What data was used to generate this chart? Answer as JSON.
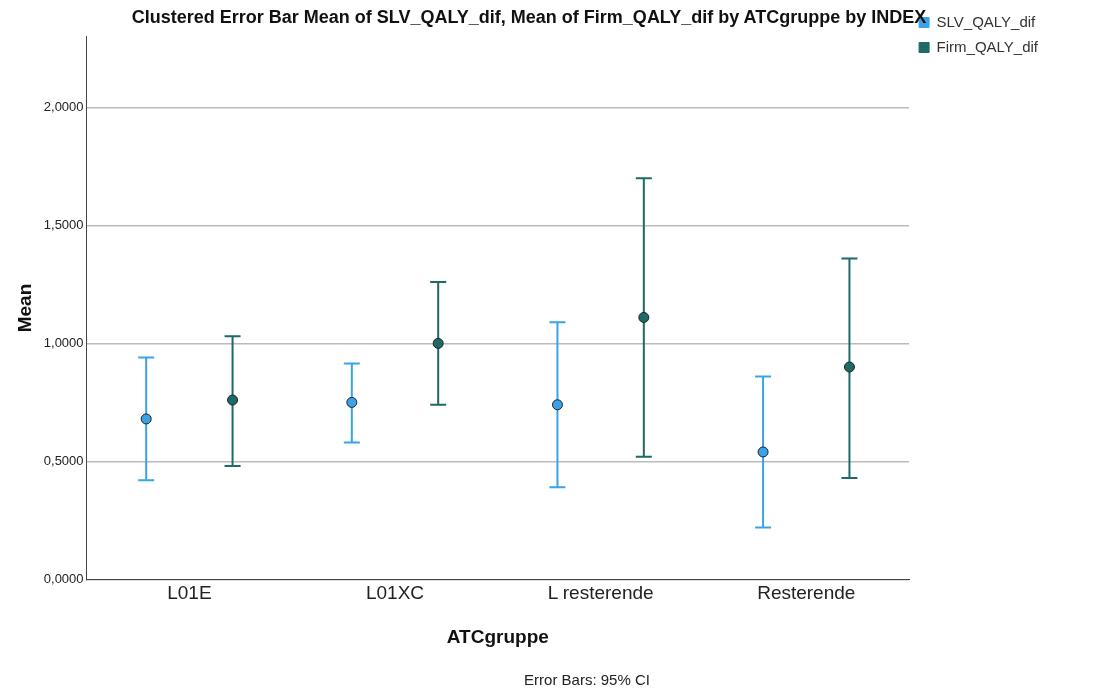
{
  "chart_data": {
    "type": "scatter",
    "title": "Clustered Error Bar Mean of SLV_QALY_dif, Mean of Firm_QALY_dif by ATCgruppe by INDEX",
    "xlabel": "ATCgruppe",
    "ylabel": "Mean",
    "categories": [
      "L01E",
      "L01XC",
      "L resterende",
      "Resterende"
    ],
    "series": [
      {
        "name": "SLV_QALY_dif",
        "color": "#3aa3e8",
        "values": [
          0.68,
          0.75,
          0.74,
          0.54
        ],
        "errors": [
          [
            0.42,
            0.94
          ],
          [
            0.58,
            0.915
          ],
          [
            0.39,
            1.09
          ],
          [
            0.22,
            0.86
          ]
        ]
      },
      {
        "name": "Firm_QALY_dif",
        "color": "#1d6a66",
        "values": [
          0.76,
          1.0,
          1.11,
          0.9
        ],
        "errors": [
          [
            0.48,
            1.03
          ],
          [
            0.74,
            1.26
          ],
          [
            0.52,
            1.7
          ],
          [
            0.43,
            1.36
          ]
        ]
      }
    ],
    "ylim": [
      0,
      2.3
    ],
    "yticks": [
      {
        "value": 0,
        "label": "0,0000"
      },
      {
        "value": 0.5,
        "label": "0,5000"
      },
      {
        "value": 1,
        "label": "1,0000"
      },
      {
        "value": 1.5,
        "label": "1,5000"
      },
      {
        "value": 2,
        "label": "2,0000"
      }
    ],
    "grid": "y",
    "legend": "top right",
    "marker": "circle",
    "annotations": [
      "Error Bars: 95% CI"
    ]
  }
}
